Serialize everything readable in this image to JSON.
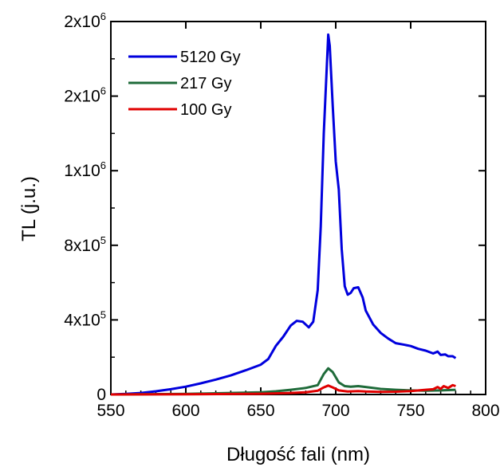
{
  "chart_data": {
    "type": "line",
    "xlabel": "Długość fali (nm)",
    "ylabel": "TL (j.u.)",
    "xlim": [
      550,
      800
    ],
    "ylim": [
      0,
      2000000
    ],
    "x_ticks": [
      {
        "value": 550,
        "label": "550"
      },
      {
        "value": 600,
        "label": "600"
      },
      {
        "value": 650,
        "label": "650"
      },
      {
        "value": 700,
        "label": "700"
      },
      {
        "value": 750,
        "label": "750"
      },
      {
        "value": 800,
        "label": "800"
      }
    ],
    "y_ticks": [
      {
        "value": 0,
        "mantissa": "0",
        "exp": ""
      },
      {
        "value": 400000,
        "mantissa": "4x10",
        "exp": "5"
      },
      {
        "value": 800000,
        "mantissa": "8x10",
        "exp": "5"
      },
      {
        "value": 1200000,
        "mantissa": "1x10",
        "exp": "6"
      },
      {
        "value": 1600000,
        "mantissa": "2x10",
        "exp": "6"
      },
      {
        "value": 2000000,
        "mantissa": "2x10",
        "exp": "6"
      }
    ],
    "legend_position": "top-left",
    "series": [
      {
        "name": "5120 Gy",
        "color": "#0000dd",
        "x": [
          550,
          560,
          570,
          580,
          590,
          600,
          610,
          620,
          630,
          640,
          650,
          655,
          660,
          665,
          670,
          674,
          678,
          682,
          685,
          688,
          690,
          692,
          694,
          695,
          696,
          698,
          700,
          702,
          704,
          706,
          708,
          710,
          712,
          715,
          718,
          720,
          725,
          730,
          735,
          740,
          745,
          750,
          755,
          760,
          765,
          768,
          770,
          773,
          775,
          778,
          780
        ],
        "y": [
          0,
          3000,
          8000,
          17000,
          28000,
          42000,
          60000,
          80000,
          102000,
          130000,
          160000,
          190000,
          260000,
          310000,
          370000,
          395000,
          390000,
          360000,
          390000,
          560000,
          900000,
          1400000,
          1750000,
          1930000,
          1870000,
          1550000,
          1250000,
          1100000,
          780000,
          580000,
          535000,
          545000,
          570000,
          575000,
          520000,
          450000,
          375000,
          330000,
          300000,
          275000,
          268000,
          260000,
          245000,
          235000,
          220000,
          230000,
          212000,
          215000,
          205000,
          205000,
          195000
        ]
      },
      {
        "name": "217 Gy",
        "color": "#1f6b3a",
        "x": [
          550,
          600,
          650,
          660,
          670,
          680,
          688,
          692,
          695,
          698,
          702,
          706,
          710,
          715,
          720,
          730,
          740,
          750,
          760,
          770,
          780
        ],
        "y": [
          0,
          3000,
          12000,
          17000,
          25000,
          35000,
          50000,
          110000,
          140000,
          120000,
          65000,
          45000,
          42000,
          45000,
          40000,
          30000,
          25000,
          22000,
          20000,
          22000,
          25000
        ]
      },
      {
        "name": "100 Gy",
        "color": "#e00000",
        "x": [
          550,
          600,
          650,
          670,
          680,
          688,
          692,
          695,
          698,
          702,
          708,
          715,
          720,
          730,
          740,
          750,
          760,
          765,
          768,
          770,
          772,
          775,
          778,
          780
        ],
        "y": [
          0,
          1000,
          4000,
          8000,
          12000,
          20000,
          38000,
          48000,
          38000,
          22000,
          16000,
          18000,
          16000,
          14000,
          15000,
          18000,
          25000,
          28000,
          40000,
          30000,
          45000,
          35000,
          50000,
          45000
        ]
      }
    ]
  }
}
